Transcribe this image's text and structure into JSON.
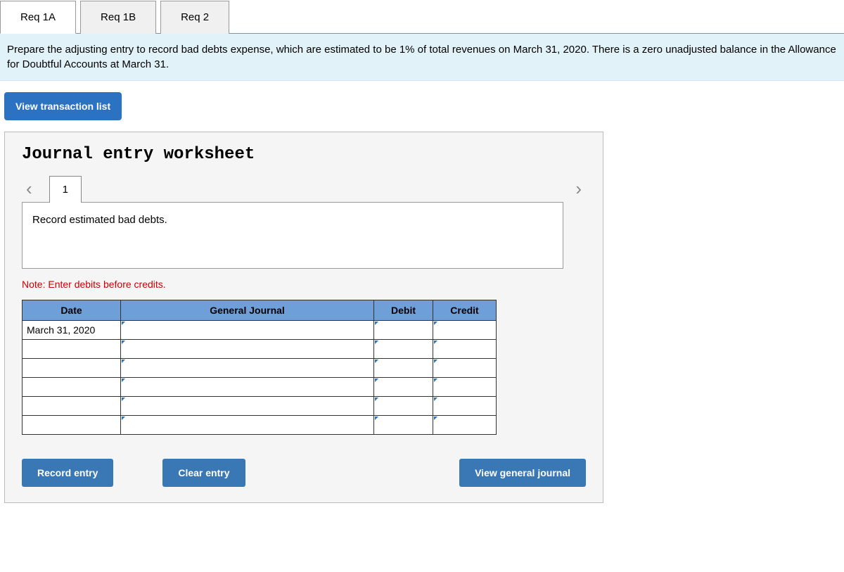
{
  "tabs": [
    {
      "label": "Req 1A",
      "active": true
    },
    {
      "label": "Req 1B",
      "active": false
    },
    {
      "label": "Req 2",
      "active": false
    }
  ],
  "instruction": "Prepare the adjusting entry to record bad debts expense, which are estimated to be 1% of total revenues on March 31, 2020. There is a zero unadjusted balance in the Allowance for Doubtful Accounts at March 31.",
  "view_transaction_btn": "View transaction list",
  "worksheet": {
    "title": "Journal entry worksheet",
    "current_page": "1",
    "description": "Record estimated bad debts.",
    "note": "Note: Enter debits before credits.",
    "columns": {
      "date": "Date",
      "general_journal": "General Journal",
      "debit": "Debit",
      "credit": "Credit"
    },
    "rows": [
      {
        "date": "March 31, 2020",
        "gj": "",
        "debit": "",
        "credit": ""
      },
      {
        "date": "",
        "gj": "",
        "debit": "",
        "credit": ""
      },
      {
        "date": "",
        "gj": "",
        "debit": "",
        "credit": ""
      },
      {
        "date": "",
        "gj": "",
        "debit": "",
        "credit": ""
      },
      {
        "date": "",
        "gj": "",
        "debit": "",
        "credit": ""
      },
      {
        "date": "",
        "gj": "",
        "debit": "",
        "credit": ""
      }
    ],
    "buttons": {
      "record": "Record entry",
      "clear": "Clear entry",
      "view_gj": "View general journal"
    }
  },
  "colors": {
    "tab_border": "#999999",
    "tab_active_bg": "#ffffff",
    "tab_inactive_bg": "#f0f0f0",
    "instruction_bg": "#e2f2f9",
    "primary_btn_bg": "#2b72c3",
    "action_btn_bg": "#3a78b5",
    "table_header_bg": "#6f9fd8",
    "note_color": "#cc0000",
    "panel_bg": "#f5f5f5",
    "chevron_color": "#888888"
  }
}
